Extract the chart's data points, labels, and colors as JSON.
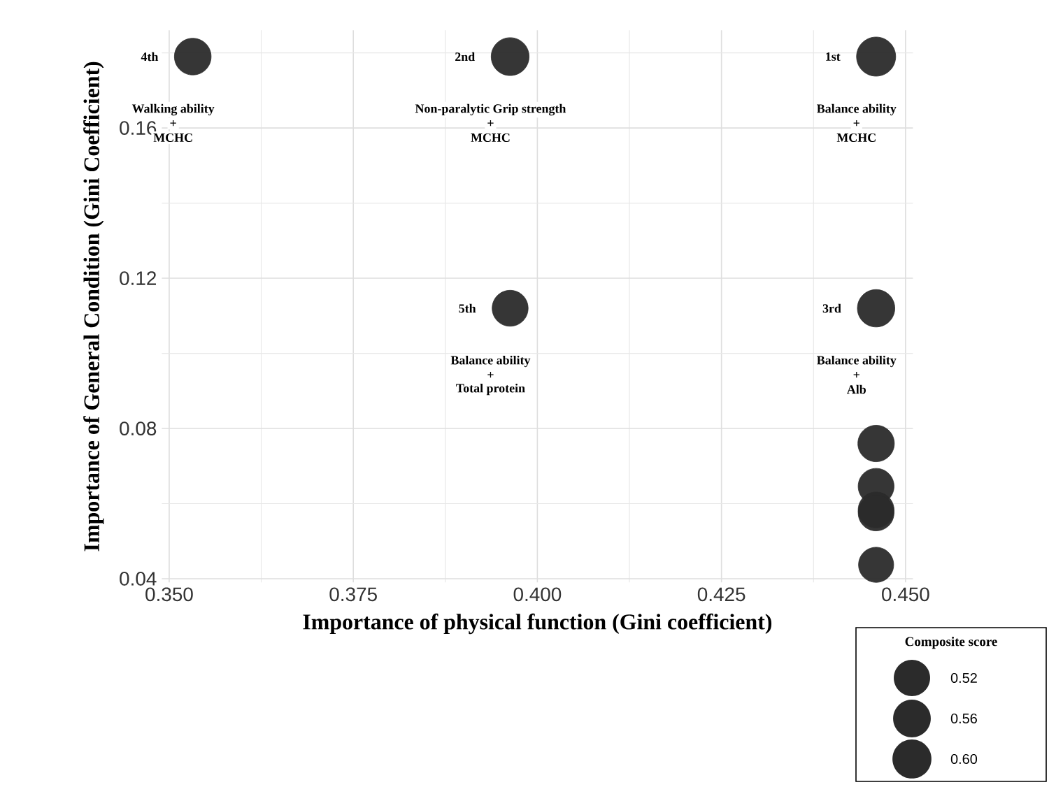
{
  "chart_data": {
    "type": "bubble",
    "xlabel": "Importance of physical function (Gini coefficient)",
    "ylabel": "Importance of General Condition (Gini Coefficient)",
    "legend_title": "Composite score",
    "x": [
      0.446,
      0.3963,
      0.446,
      0.3532,
      0.3963,
      0.446,
      0.446,
      0.446,
      0.446,
      0.446
    ],
    "values": [
      0.179,
      0.179,
      0.112,
      0.179,
      0.112,
      0.076,
      0.0646,
      0.0583,
      0.0575,
      0.0437
    ],
    "sizes": [
      0.604,
      0.567,
      0.552,
      0.532,
      0.51,
      0.524,
      0.507,
      0.507,
      0.505,
      0.486
    ],
    "size_legend": [
      0.52,
      0.56,
      {
        "value": 0.6,
        "label": "0.60"
      }
    ],
    "color": "#2b2b2b",
    "xlim": [
      0.349,
      0.451
    ],
    "ylim": [
      0.039,
      0.186
    ],
    "xticks": [
      {
        "value": 0.35,
        "label": "0.350"
      },
      {
        "value": 0.375,
        "label": "0.375"
      },
      {
        "value": 0.4,
        "label": "0.400"
      },
      {
        "value": 0.425,
        "label": "0.425"
      },
      {
        "value": 0.45,
        "label": "0.450"
      }
    ],
    "yticks": [
      0.04,
      0.08,
      0.12,
      0.16
    ],
    "grid": true,
    "annotations": [
      {
        "text": "1st",
        "x": 0.446,
        "y": 0.179
      },
      "Balance ability",
      "+",
      "MCHC",
      {
        "text": "2nd",
        "x": 0.3963,
        "y": 0.179
      },
      "Non-paralytic Grip strength",
      "+",
      "MCHC",
      {
        "text": "3rd",
        "x": 0.446,
        "y": 0.112
      },
      "Balance ability",
      "+",
      "Alb",
      {
        "text": "4th",
        "x": 0.3532,
        "y": 0.179
      },
      "Walking ability",
      "+",
      "MCHC",
      {
        "text": "5th",
        "x": 0.3963,
        "y": 0.112
      },
      "Balance ability",
      "+",
      "Total protein"
    ]
  }
}
